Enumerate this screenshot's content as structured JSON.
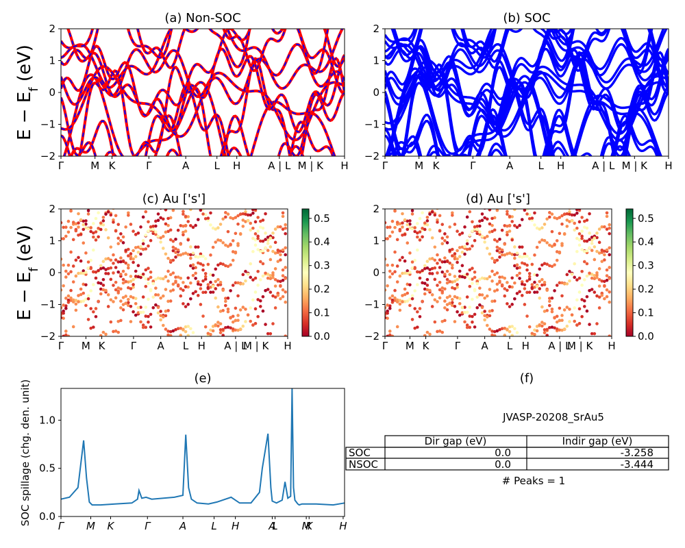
{
  "panels": {
    "a": {
      "title": "(a) Non-SOC"
    },
    "b": {
      "title": "(b) SOC"
    },
    "c": {
      "title": "(c)  Au ['s']"
    },
    "d": {
      "title": "(d) Au ['s']"
    },
    "e": {
      "title": "(e)"
    },
    "f": {
      "title": "(f)"
    }
  },
  "band_axis": {
    "ylabel": "E − E_f (eV)",
    "ylim": [
      -2,
      2
    ],
    "yticks": [
      "2",
      "1",
      "0",
      "−1",
      "−2"
    ],
    "kpath_full": [
      "Γ",
      "M",
      "K",
      "Γ",
      "A",
      "L",
      "H",
      "A | L",
      "M | K",
      "H"
    ],
    "kpath_proj": [
      "Γ",
      "M",
      "K",
      "Γ",
      "A",
      "L",
      "H",
      "A | L",
      "M | K",
      "H"
    ]
  },
  "colorbar": {
    "ticks": [
      "0.5",
      "0.4",
      "0.3",
      "0.2",
      "0.1",
      "0.0"
    ],
    "range": [
      0.0,
      0.54
    ],
    "colormap": "RdYlGn"
  },
  "spillage": {
    "ylabel": "SOC spillage (chg. den. unit)",
    "yticks": [
      "1.0",
      "0.5",
      "0.0"
    ],
    "ylim": [
      0,
      1.33
    ],
    "xticks": [
      "Γ",
      "M",
      "K",
      "Γ",
      "A",
      "L",
      "H",
      "A",
      "L",
      "M",
      "K",
      "H"
    ],
    "line_color": "#1f77b4"
  },
  "table": {
    "caption": "JVASP-20208_SrAu5",
    "headers": [
      "",
      "Dir gap (eV)",
      "Indir gap (eV)"
    ],
    "rows": [
      [
        "SOC",
        "0.0",
        "-3.258"
      ],
      [
        "NSOC",
        "0.0",
        "-3.444"
      ]
    ],
    "footer": "# Peaks = 1"
  },
  "chart_data": [
    {
      "type": "line",
      "title": "(a) Non-SOC",
      "ylabel": "E − E_f (eV)",
      "ylim": [
        -2,
        2
      ],
      "series": [
        {
          "name": "",
          "color": "#ff0000"
        },
        {
          "name": "",
          "color": "#0000ff"
        }
      ]
    },
    {
      "type": "line",
      "title": "(b) SOC",
      "ylim": [
        -2,
        2
      ],
      "series": [
        {
          "name": "",
          "color": "#0000ff"
        }
      ]
    },
    {
      "type": "scatter",
      "title": "(c)  Au ['s']",
      "ylabel": "E − E_f (eV)",
      "ylim": [
        -2,
        2
      ],
      "colorbar_range": [
        0,
        0.54
      ]
    },
    {
      "type": "scatter",
      "title": "(d) Au ['s']",
      "ylim": [
        -2,
        2
      ],
      "colorbar_range": [
        0,
        0.54
      ]
    },
    {
      "type": "line",
      "title": "(e)",
      "ylabel": "SOC spillage (chg. den. unit)",
      "ylim": [
        0,
        1.33
      ],
      "x": [
        0,
        0.03,
        0.06,
        0.08,
        0.09,
        0.1,
        0.11,
        0.14,
        0.19,
        0.25,
        0.27,
        0.275,
        0.285,
        0.3,
        0.32,
        0.4,
        0.43,
        0.44,
        0.45,
        0.46,
        0.48,
        0.52,
        0.55,
        0.6,
        0.63,
        0.67,
        0.7,
        0.71,
        0.73,
        0.74,
        0.745,
        0.76,
        0.78,
        0.79,
        0.8,
        0.81,
        0.815,
        0.82,
        0.825,
        0.83,
        0.835,
        0.84,
        0.85,
        0.87,
        0.9,
        0.96,
        1.0
      ],
      "values": [
        0.18,
        0.2,
        0.3,
        0.79,
        0.4,
        0.15,
        0.12,
        0.12,
        0.13,
        0.14,
        0.18,
        0.27,
        0.19,
        0.2,
        0.18,
        0.2,
        0.22,
        0.85,
        0.3,
        0.18,
        0.14,
        0.13,
        0.15,
        0.2,
        0.14,
        0.14,
        0.25,
        0.5,
        0.86,
        0.3,
        0.16,
        0.14,
        0.17,
        0.36,
        0.19,
        0.21,
        1.33,
        0.3,
        0.17,
        0.15,
        0.13,
        0.12,
        0.13,
        0.13,
        0.13,
        0.12,
        0.14
      ]
    }
  ]
}
